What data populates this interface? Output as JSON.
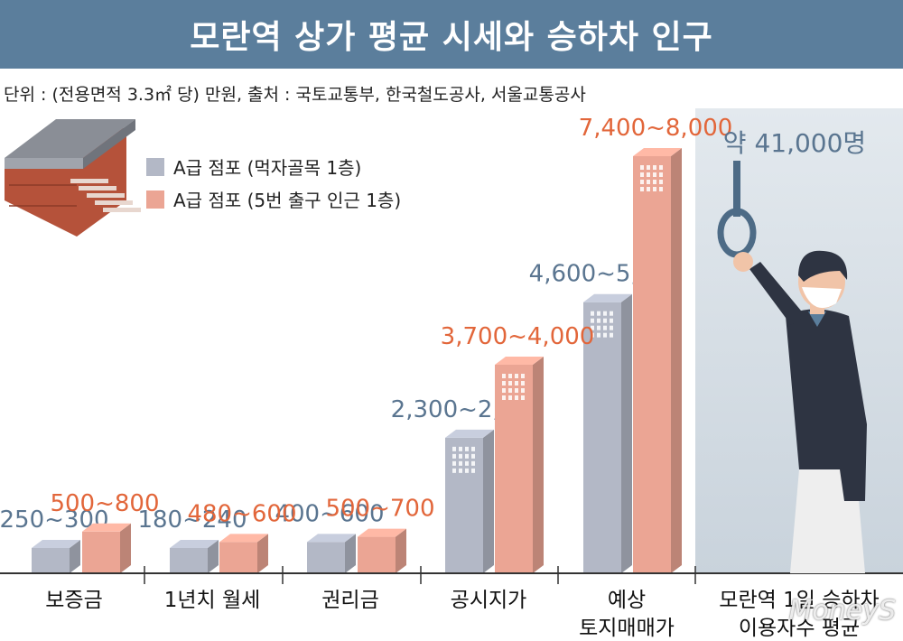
{
  "header": {
    "title": "모란역 상가 평균 시세와 승하차 인구"
  },
  "unit_note": "단위 : (전용면적 3.3㎡ 당) 만원, 출처 : 국토교통부, 한국철도공사, 서울교통공사",
  "colors": {
    "gray": "#b3b8c6",
    "salmon": "#eba594",
    "gray_label": "#5a7590",
    "salmon_label": "#e2663a",
    "title_bg": "#5b7e9c"
  },
  "chart_data": {
    "type": "bar",
    "categories": [
      "보증금",
      "1년치 월세",
      "권리금",
      "공시지가",
      "예상 토지매매가"
    ],
    "series": [
      {
        "name": "A급 점포 (먹자골목 1층)",
        "labels": [
          "250~300",
          "180~240",
          "400~600",
          "2,300~2,600",
          "4,600~5,200"
        ],
        "low": [
          250,
          180,
          400,
          2300,
          4600
        ],
        "high": [
          300,
          240,
          600,
          2600,
          5200
        ]
      },
      {
        "name": "A급 점포 (5번 출구 인근 1층)",
        "labels": [
          "500~800",
          "480~600",
          "500~700",
          "3,700~4,000",
          "7,400~8,000"
        ],
        "low": [
          500,
          480,
          500,
          3700,
          7400
        ],
        "high": [
          800,
          600,
          700,
          4000,
          8000
        ]
      }
    ],
    "extra": {
      "category": "모란역 1일 승하차 이용자수 평균",
      "value_label": "약 41,000명",
      "value": 41000
    }
  },
  "watermark": "MoneyS"
}
